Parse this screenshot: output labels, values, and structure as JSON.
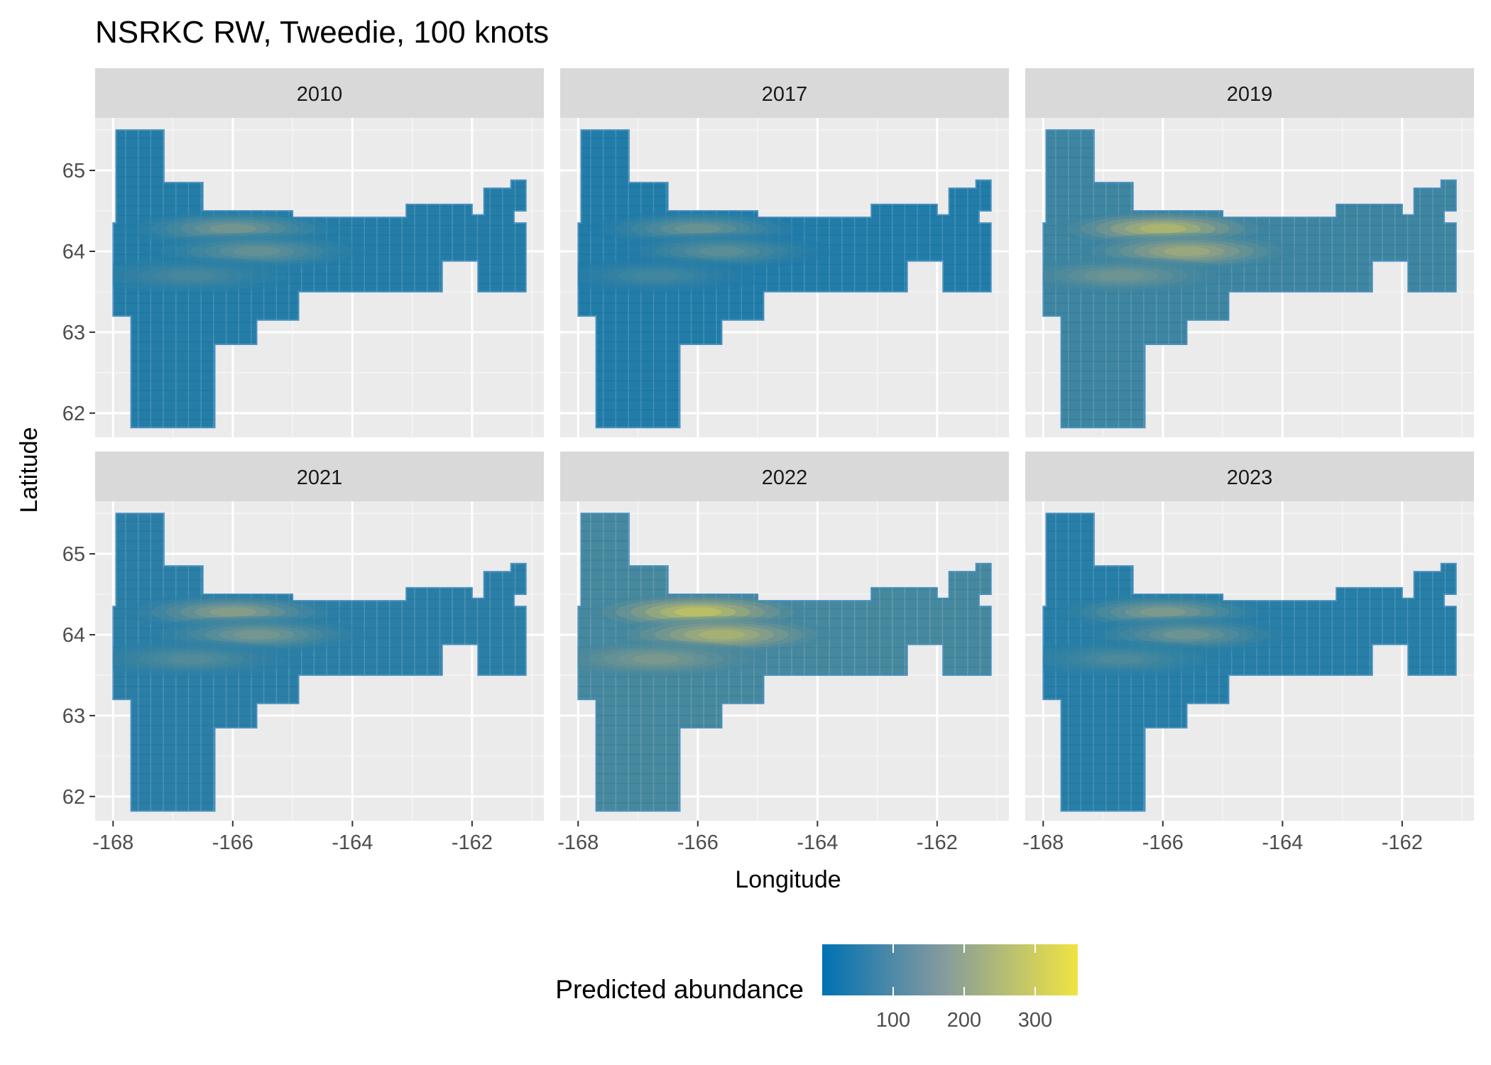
{
  "chart_data": {
    "type": "scatter",
    "title": "NSRKC RW, Tweedie, 100 knots",
    "xlabel": "Longitude",
    "ylabel": "Latitude",
    "xlim": [
      -168.3,
      -160.8
    ],
    "ylim": [
      61.7,
      65.65
    ],
    "x_ticks": [
      -168,
      -166,
      -164,
      -162
    ],
    "x_tick_labels": [
      "-168",
      "-166",
      "-164",
      "-162"
    ],
    "y_ticks": [
      62,
      63,
      64,
      65
    ],
    "y_tick_labels": [
      "62",
      "63",
      "64",
      "65"
    ],
    "grid": true,
    "facets": [
      "2010",
      "2017",
      "2019",
      "2021",
      "2022",
      "2023"
    ],
    "facet_intensity": [
      0.45,
      0.4,
      0.85,
      0.55,
      1.0,
      0.5
    ],
    "color_scale": {
      "name": "Predicted abundance",
      "low_color": "#0072b2",
      "mid_color": "#8e9e89",
      "high_color": "#f0e442",
      "min": 0,
      "max": 360,
      "breaks": [
        100,
        200,
        300
      ],
      "break_labels": [
        "100",
        "200",
        "300"
      ]
    },
    "hotspots": [
      {
        "lon": -166.0,
        "lat": 64.28,
        "peak": 340
      },
      {
        "lon": -165.6,
        "lat": 64.0,
        "peak": 280
      },
      {
        "lon": -166.7,
        "lat": 63.7,
        "peak": 170
      }
    ],
    "survey_region_polygon": [
      [
        -167.95,
        65.5
      ],
      [
        -167.15,
        65.5
      ],
      [
        -167.15,
        64.85
      ],
      [
        -166.5,
        64.85
      ],
      [
        -166.5,
        64.5
      ],
      [
        -165.0,
        64.5
      ],
      [
        -165.0,
        64.42
      ],
      [
        -163.1,
        64.42
      ],
      [
        -163.1,
        64.58
      ],
      [
        -162.0,
        64.58
      ],
      [
        -162.0,
        64.45
      ],
      [
        -161.8,
        64.45
      ],
      [
        -161.8,
        64.78
      ],
      [
        -161.35,
        64.78
      ],
      [
        -161.35,
        64.88
      ],
      [
        -161.1,
        64.88
      ],
      [
        -161.1,
        64.5
      ],
      [
        -161.3,
        64.5
      ],
      [
        -161.3,
        64.35
      ],
      [
        -161.1,
        64.35
      ],
      [
        -161.1,
        63.5
      ],
      [
        -161.9,
        63.5
      ],
      [
        -161.9,
        63.88
      ],
      [
        -162.5,
        63.88
      ],
      [
        -162.5,
        63.5
      ],
      [
        -164.9,
        63.5
      ],
      [
        -164.9,
        63.15
      ],
      [
        -165.6,
        63.15
      ],
      [
        -165.6,
        62.85
      ],
      [
        -166.3,
        62.85
      ],
      [
        -166.3,
        61.82
      ],
      [
        -167.7,
        61.82
      ],
      [
        -167.7,
        63.2
      ],
      [
        -168.0,
        63.2
      ],
      [
        -168.0,
        64.35
      ],
      [
        -167.95,
        64.35
      ]
    ]
  }
}
